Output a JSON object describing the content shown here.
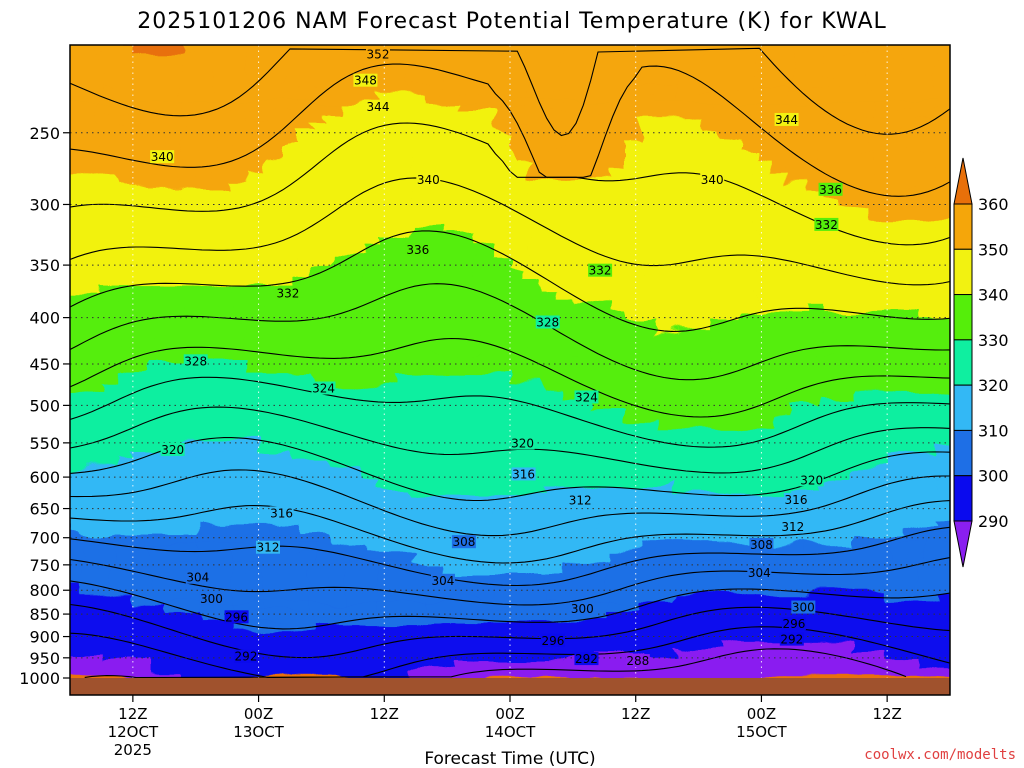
{
  "chart_data": {
    "type": "heatmap",
    "title": "2025101206 NAM Forecast Potential Temperature (K) for KWAL",
    "xlabel": "Forecast Time (UTC)",
    "ylabel": "",
    "y_scale": "log",
    "ylim": [
      1000,
      200
    ],
    "y_ticks": [
      250,
      300,
      350,
      400,
      450,
      500,
      550,
      600,
      650,
      700,
      750,
      800,
      850,
      900,
      950,
      1000
    ],
    "x_ticks": [
      {
        "hour": 6,
        "lines": [
          "12Z",
          "12OCT",
          "2025"
        ]
      },
      {
        "hour": 18,
        "lines": [
          "00Z",
          "13OCT"
        ]
      },
      {
        "hour": 30,
        "lines": [
          "12Z"
        ]
      },
      {
        "hour": 42,
        "lines": [
          "00Z",
          "14OCT"
        ]
      },
      {
        "hour": 54,
        "lines": [
          "12Z"
        ]
      },
      {
        "hour": 66,
        "lines": [
          "00Z",
          "15OCT"
        ]
      },
      {
        "hour": 78,
        "lines": [
          "12Z"
        ]
      }
    ],
    "xlim": [
      0,
      84
    ],
    "grid": true,
    "colorbar": {
      "levels": [
        290,
        300,
        310,
        320,
        330,
        340,
        350,
        360
      ],
      "colors": [
        "#8a1ff0",
        "#0a0aee",
        "#1e6fe6",
        "#33b8f5",
        "#0fefa0",
        "#55ee0a",
        "#f2f211",
        "#f5a60a",
        "#e8700a"
      ]
    },
    "contour_labels": [
      {
        "text": "352",
        "hour": 29.4,
        "p": 205
      },
      {
        "text": "348",
        "hour": 28.2,
        "p": 219
      },
      {
        "text": "344",
        "hour": 29.4,
        "p": 234
      },
      {
        "text": "344",
        "hour": 68.4,
        "p": 242
      },
      {
        "text": "340",
        "hour": 8.8,
        "p": 266
      },
      {
        "text": "340",
        "hour": 34.2,
        "p": 282
      },
      {
        "text": "340",
        "hour": 61.3,
        "p": 282
      },
      {
        "text": "336",
        "hour": 72.6,
        "p": 289
      },
      {
        "text": "332",
        "hour": 72.2,
        "p": 316
      },
      {
        "text": "336",
        "hour": 33.2,
        "p": 337
      },
      {
        "text": "332",
        "hour": 50.6,
        "p": 355
      },
      {
        "text": "332",
        "hour": 20.8,
        "p": 376
      },
      {
        "text": "328",
        "hour": 45.6,
        "p": 405
      },
      {
        "text": "328",
        "hour": 12.0,
        "p": 447
      },
      {
        "text": "324",
        "hour": 24.2,
        "p": 479
      },
      {
        "text": "324",
        "hour": 49.3,
        "p": 490
      },
      {
        "text": "320",
        "hour": 43.2,
        "p": 551
      },
      {
        "text": "320",
        "hour": 9.8,
        "p": 560
      },
      {
        "text": "320",
        "hour": 70.8,
        "p": 605
      },
      {
        "text": "316",
        "hour": 43.3,
        "p": 596
      },
      {
        "text": "316",
        "hour": 69.3,
        "p": 636
      },
      {
        "text": "312",
        "hour": 48.7,
        "p": 637
      },
      {
        "text": "316",
        "hour": 20.2,
        "p": 658
      },
      {
        "text": "312",
        "hour": 69.0,
        "p": 681
      },
      {
        "text": "308",
        "hour": 37.6,
        "p": 708
      },
      {
        "text": "308",
        "hour": 66.0,
        "p": 713
      },
      {
        "text": "312",
        "hour": 18.9,
        "p": 718
      },
      {
        "text": "304",
        "hour": 65.8,
        "p": 766
      },
      {
        "text": "304",
        "hour": 12.2,
        "p": 775
      },
      {
        "text": "304",
        "hour": 35.6,
        "p": 781
      },
      {
        "text": "300",
        "hour": 13.5,
        "p": 818
      },
      {
        "text": "300",
        "hour": 48.9,
        "p": 839
      },
      {
        "text": "300",
        "hour": 70.0,
        "p": 836
      },
      {
        "text": "296",
        "hour": 15.9,
        "p": 857
      },
      {
        "text": "296",
        "hour": 69.1,
        "p": 872
      },
      {
        "text": "296",
        "hour": 46.1,
        "p": 910
      },
      {
        "text": "292",
        "hour": 68.9,
        "p": 907
      },
      {
        "text": "292",
        "hour": 16.8,
        "p": 947
      },
      {
        "text": "292",
        "hour": 49.3,
        "p": 953
      },
      {
        "text": "288",
        "hour": 54.2,
        "p": 958
      }
    ]
  },
  "credit": "coolwx.com/modelts",
  "colors": {
    "ground": "#a0522d",
    "credit": "#e04040"
  }
}
